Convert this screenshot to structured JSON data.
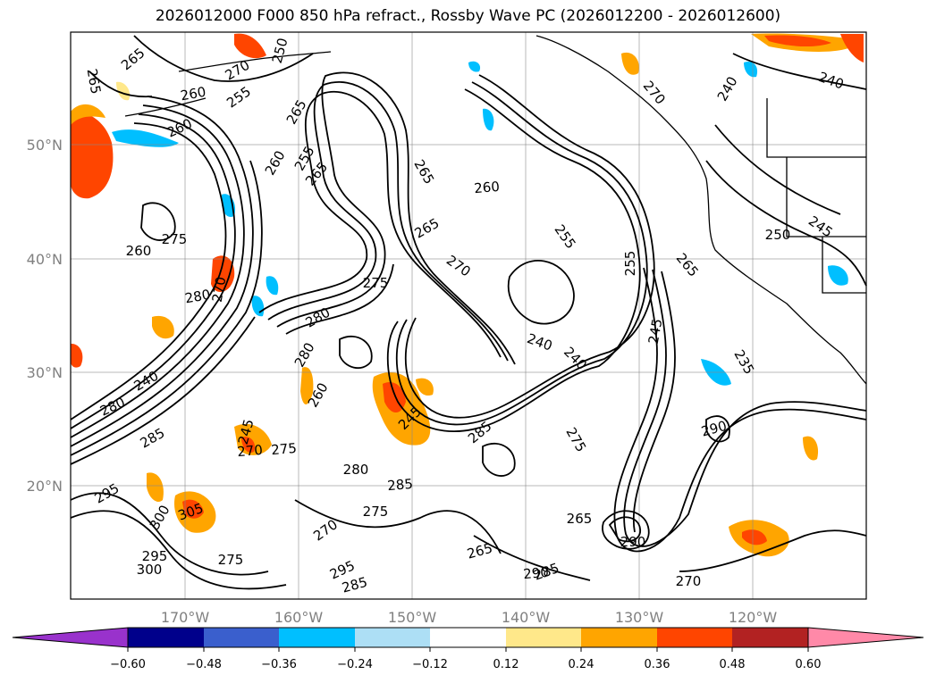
{
  "title": "2026012000 F000 850 hPa refract., Rossby Wave PC (2026012200 - 2026012600)",
  "axes": {
    "lat_ticks": [
      "50°N",
      "40°N",
      "30°N",
      "20°N"
    ],
    "lon_ticks": [
      "170°W",
      "160°W",
      "150°W",
      "140°W",
      "130°W",
      "120°W"
    ]
  },
  "contour_labels": [
    "265",
    "270",
    "250",
    "265",
    "260",
    "265",
    "265",
    "255",
    "260",
    "255",
    "260",
    "275",
    "260",
    "265",
    "260",
    "255",
    "265",
    "270",
    "240",
    "265",
    "255",
    "270",
    "280",
    "280",
    "275",
    "270",
    "240",
    "245",
    "240",
    "240",
    "245",
    "280",
    "240",
    "280",
    "260",
    "285",
    "245",
    "275",
    "270",
    "285",
    "280",
    "275",
    "290",
    "290",
    "285",
    "295",
    "300",
    "295",
    "300",
    "305",
    "275",
    "270",
    "265",
    "295",
    "285",
    "275",
    "285",
    "270",
    "290",
    "235",
    "265",
    "245",
    "250"
  ],
  "colorbar": {
    "tick_labels": [
      "−0.60",
      "−0.48",
      "−0.36",
      "−0.24",
      "−0.12",
      "0.12",
      "0.24",
      "0.36",
      "0.48",
      "0.60"
    ],
    "colors": [
      "#9932CC",
      "#00008B",
      "#3A5FCD",
      "#00BFFF",
      "#ADDFF5",
      "#FFFFFF",
      "#FFE88A",
      "#FFA500",
      "#FF4500",
      "#B22222",
      "#FF89A8"
    ]
  }
}
